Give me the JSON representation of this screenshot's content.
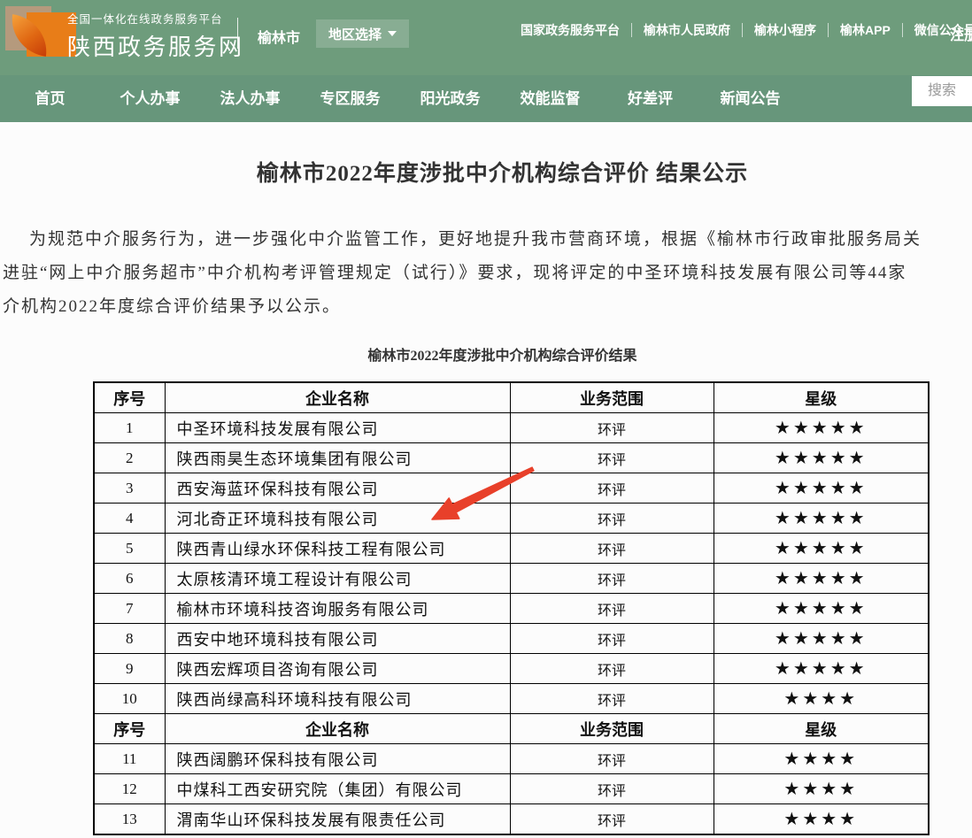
{
  "header": {
    "platform_tagline": "全国一体化在线政务服务平台",
    "site_name": "陕西政务服务网",
    "current_city": "榆林市",
    "region_selector_label": "地区选择",
    "quick_links": [
      "国家政务服务平台",
      "榆林市人民政府",
      "榆林小程序",
      "榆林APP",
      "微信公众号"
    ],
    "register_label": "注册"
  },
  "nav": {
    "items": [
      "首页",
      "个人办事",
      "法人办事",
      "专区服务",
      "阳光政务",
      "效能监督",
      "好差评",
      "新闻公告"
    ],
    "search_placeholder": "搜索"
  },
  "colors": {
    "header_green": "#6e9c7c",
    "nav_green": "#67967b",
    "logo_orange": "#e87d18",
    "logo_tan": "#b59a7d",
    "arrow_red": "#e8402a",
    "star_black": "#000000"
  },
  "article": {
    "title": "榆林市2022年度涉批中介机构综合评价 结果公示",
    "paragraph_lines": [
      "为规范中介服务行为，进一步强化中介监管工作，更好地提升我市营商环境，根据《榆林市行政审批服务局关",
      "进驻“网上中介服务超市”中介机构考评管理规定（试行）》要求，现将评定的中圣环境科技发展有限公司等44家",
      "介机构2022年度综合评价结果予以公示。"
    ],
    "table_caption": "榆林市2022年度涉批中介机构综合评价结果"
  },
  "table": {
    "columns": [
      "序号",
      "企业名称",
      "业务范围",
      "星级"
    ],
    "sections": [
      {
        "rows": [
          {
            "no": "1",
            "name": "中圣环境科技发展有限公司",
            "scope": "环评",
            "stars": "★★★★★"
          },
          {
            "no": "2",
            "name": "陕西雨昊生态环境集团有限公司",
            "scope": "环评",
            "stars": "★★★★★"
          },
          {
            "no": "3",
            "name": "西安海蓝环保科技有限公司",
            "scope": "环评",
            "stars": "★★★★★"
          },
          {
            "no": "4",
            "name": "河北奇正环境科技有限公司",
            "scope": "环评",
            "stars": "★★★★★"
          },
          {
            "no": "5",
            "name": "陕西青山绿水环保科技工程有限公司",
            "scope": "环评",
            "stars": "★★★★★"
          },
          {
            "no": "6",
            "name": "太原核清环境工程设计有限公司",
            "scope": "环评",
            "stars": "★★★★★"
          },
          {
            "no": "7",
            "name": "榆林市环境科技咨询服务有限公司",
            "scope": "环评",
            "stars": "★★★★★"
          },
          {
            "no": "8",
            "name": "西安中地环境科技有限公司",
            "scope": "环评",
            "stars": "★★★★★"
          },
          {
            "no": "9",
            "name": "陕西宏辉项目咨询有限公司",
            "scope": "环评",
            "stars": "★★★★★"
          },
          {
            "no": "10",
            "name": "陕西尚绿高科环境科技有限公司",
            "scope": "环评",
            "stars": "★★★★"
          }
        ]
      },
      {
        "rows": [
          {
            "no": "11",
            "name": "陕西阔鹏环保科技有限公司",
            "scope": "环评",
            "stars": "★★★★"
          },
          {
            "no": "12",
            "name": "中煤科工西安研究院（集团）有限公司",
            "scope": "环评",
            "stars": "★★★★"
          },
          {
            "no": "13",
            "name": "渭南华山环保科技发展有限责任公司",
            "scope": "环评",
            "stars": "★★★★"
          }
        ]
      }
    ]
  }
}
